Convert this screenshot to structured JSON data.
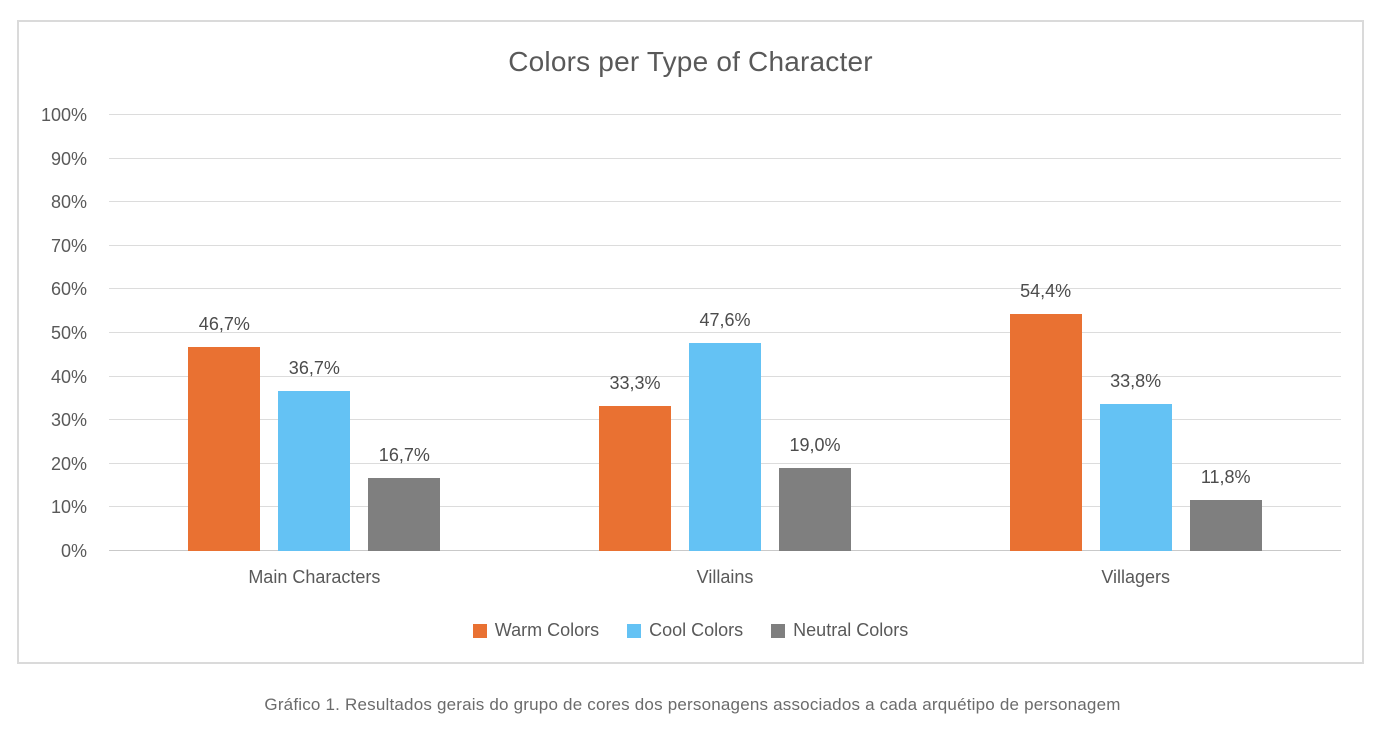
{
  "chart_data": {
    "type": "bar",
    "title": "Colors per Type of Character",
    "categories": [
      "Main Characters",
      "Villains",
      "Villagers"
    ],
    "series": [
      {
        "name": "Warm Colors",
        "color": "#E97132",
        "values": [
          46.7,
          33.3,
          54.4
        ],
        "labels": [
          "46,7%",
          "33,3%",
          "54,4%"
        ]
      },
      {
        "name": "Cool Colors",
        "color": "#64C2F4",
        "values": [
          36.7,
          47.6,
          33.8
        ],
        "labels": [
          "36,7%",
          "47,6%",
          "33,8%"
        ]
      },
      {
        "name": "Neutral Colors",
        "color": "#7F7F7F",
        "values": [
          16.7,
          19.0,
          11.8
        ],
        "labels": [
          "16,7%",
          "19,0%",
          "11,8%"
        ]
      }
    ],
    "y_axis": {
      "min": 0,
      "max": 100,
      "step": 10,
      "ticks": [
        {
          "value": 0,
          "label": "0%"
        },
        {
          "value": 10,
          "label": "10%"
        },
        {
          "value": 20,
          "label": "20%"
        },
        {
          "value": 30,
          "label": "30%"
        },
        {
          "value": 40,
          "label": "40%"
        },
        {
          "value": 50,
          "label": "50%"
        },
        {
          "value": 60,
          "label": "60%"
        },
        {
          "value": 70,
          "label": "70%"
        },
        {
          "value": 80,
          "label": "80%"
        },
        {
          "value": 90,
          "label": "90%"
        },
        {
          "value": 100,
          "label": "100%"
        }
      ]
    },
    "grid": true,
    "legend_position": "bottom"
  },
  "caption": "Gráfico 1. Resultados gerais do grupo de cores dos personagens associados a cada arquétipo de personagem",
  "colors": {
    "warm": "#E97132",
    "cool": "#64C2F4",
    "neutral": "#7F7F7F",
    "gridline": "#DCDCDC",
    "axis_line": "#C9C9C9",
    "card_border": "#DADADA",
    "text": "#595959",
    "data_label_text": "#4C4C4C",
    "caption_text": "#6B6B6B"
  }
}
